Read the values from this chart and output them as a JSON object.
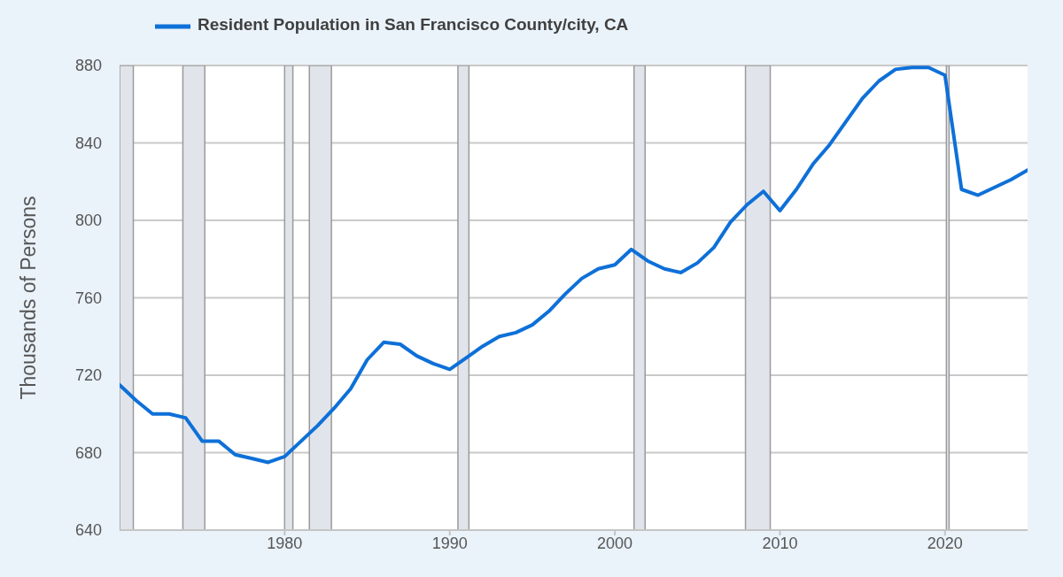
{
  "chart_data": {
    "type": "line",
    "x": [
      "1970",
      "1971",
      "1972",
      "1973",
      "1974",
      "1975",
      "1976",
      "1977",
      "1978",
      "1979",
      "1980",
      "1981",
      "1982",
      "1983",
      "1984",
      "1985",
      "1986",
      "1987",
      "1988",
      "1989",
      "1990",
      "1991",
      "1992",
      "1993",
      "1994",
      "1995",
      "1996",
      "1997",
      "1998",
      "1999",
      "2000",
      "2001",
      "2002",
      "2003",
      "2004",
      "2005",
      "2006",
      "2007",
      "2008",
      "2009",
      "2010",
      "2011",
      "2012",
      "2013",
      "2014",
      "2015",
      "2016",
      "2017",
      "2018",
      "2019",
      "2020",
      "2021",
      "2022",
      "2023",
      "2024",
      "2025"
    ],
    "series": [
      {
        "name": "Resident Population in San Francisco County/city, CA",
        "color": "#0e70d8",
        "values": [
          715,
          707,
          700,
          700,
          698,
          686,
          686,
          679,
          677,
          675,
          678,
          686,
          694,
          703,
          713,
          728,
          737,
          736,
          730,
          726,
          723,
          729,
          735,
          740,
          742,
          746,
          753,
          762,
          770,
          775,
          777,
          785,
          779,
          775,
          773,
          778,
          786,
          799,
          808,
          815,
          805,
          816,
          829,
          839,
          851,
          863,
          872,
          878,
          879,
          879,
          875,
          816,
          813,
          817,
          821,
          826
        ]
      }
    ],
    "ylabel": "Thousands of Persons",
    "xlim": [
      "1970",
      "2025"
    ],
    "xticks": [
      "1980",
      "1990",
      "2000",
      "2010",
      "2020"
    ],
    "ylim": [
      640,
      880
    ],
    "yticks": [
      640,
      680,
      720,
      760,
      800,
      840,
      880
    ],
    "grid": "y",
    "legend": "top left",
    "bands": [
      {
        "axis": "x",
        "from": "1970",
        "to": "1970-11",
        "color": "#e1e5eb"
      },
      {
        "axis": "x",
        "from": "1973-11",
        "to": "1975-03",
        "color": "#e1e5eb"
      },
      {
        "axis": "x",
        "from": "1980-01",
        "to": "1980-07",
        "color": "#e1e5eb"
      },
      {
        "axis": "x",
        "from": "1981-07",
        "to": "1982-11",
        "color": "#e1e5eb"
      },
      {
        "axis": "x",
        "from": "1990-07",
        "to": "1991-03",
        "color": "#e1e5eb"
      },
      {
        "axis": "x",
        "from": "2001-03",
        "to": "2001-11",
        "color": "#e1e5eb"
      },
      {
        "axis": "x",
        "from": "2007-12",
        "to": "2009-06",
        "color": "#e1e5eb"
      },
      {
        "axis": "x",
        "from": "2020-02",
        "to": "2020-04",
        "color": "#e1e5eb"
      }
    ]
  }
}
